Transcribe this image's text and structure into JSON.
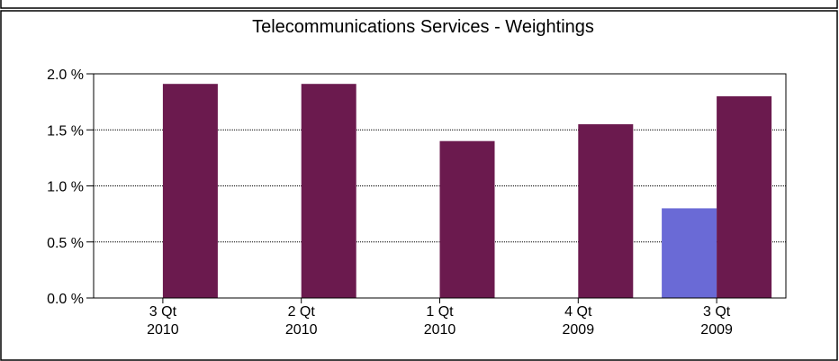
{
  "chart_data": {
    "type": "bar",
    "title": "Telecommunications Services  -  Weightings",
    "categories": [
      [
        "3 Qt",
        "2010"
      ],
      [
        "2 Qt",
        "2010"
      ],
      [
        "1 Qt",
        "2010"
      ],
      [
        "4 Qt",
        "2009"
      ],
      [
        "3 Qt",
        "2009"
      ]
    ],
    "series": [
      {
        "values": [
          null,
          null,
          null,
          null,
          0.8
        ],
        "color": "#6a6ad6"
      },
      {
        "values": [
          1.91,
          1.91,
          1.4,
          1.55,
          1.8
        ],
        "color": "#6b1a4e"
      }
    ],
    "yticks": [
      0,
      0.5,
      1.0,
      1.5,
      2.0
    ],
    "ytick_labels": [
      "0.0 %",
      "0.5 %",
      "1.0 %",
      "1.5 %",
      "2.0 %"
    ],
    "ylim": [
      0,
      2.0
    ],
    "grid": "horizontal dotted",
    "xlabel": "",
    "ylabel": ""
  }
}
